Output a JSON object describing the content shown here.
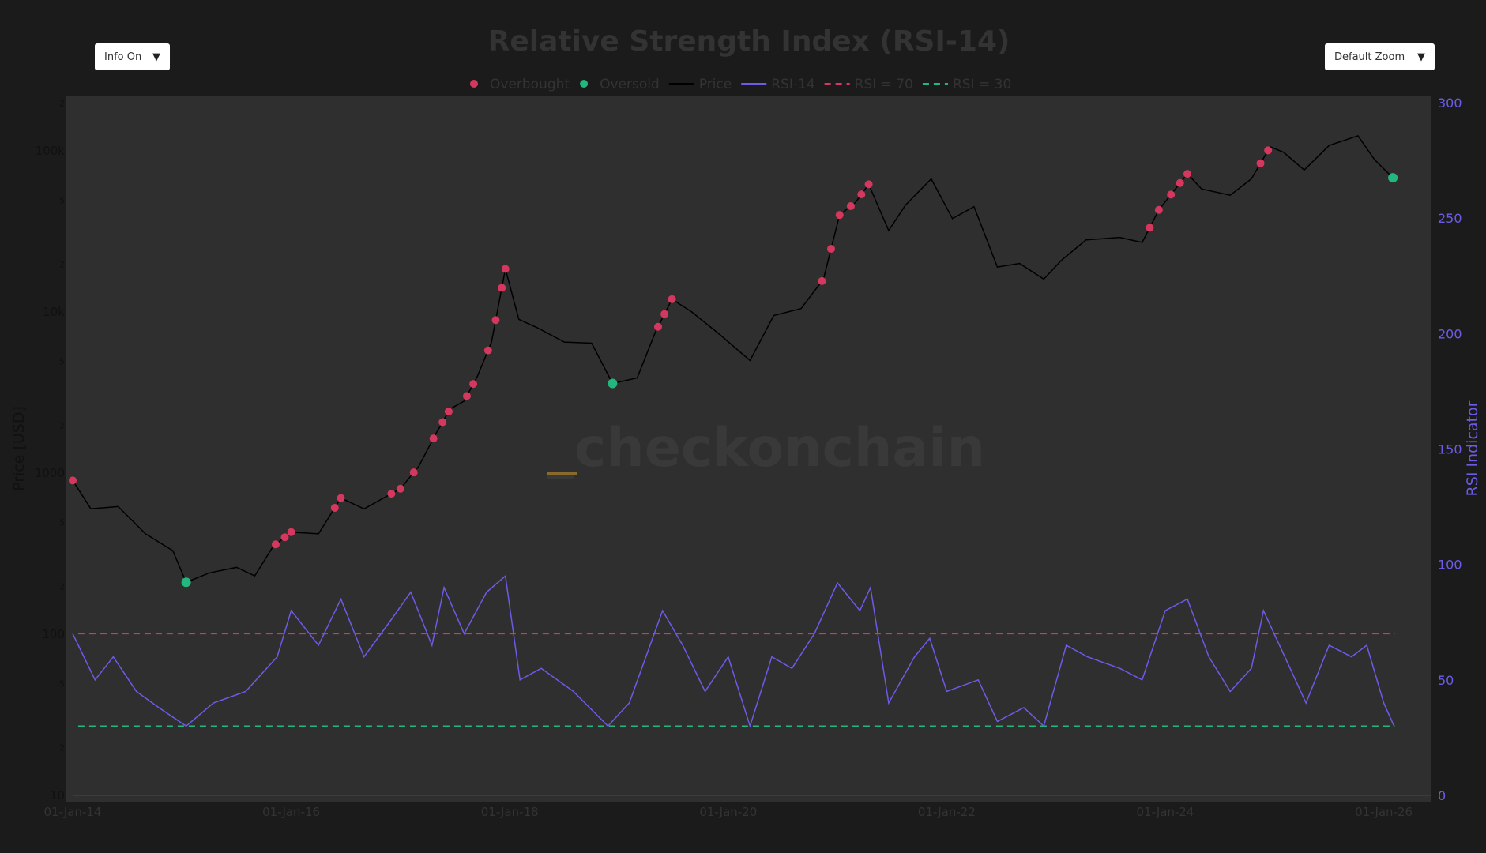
{
  "controls": {
    "info_label": "Info On",
    "zoom_label": "Default Zoom"
  },
  "colors": {
    "overbought": "#d6375e",
    "oversold": "#22b77e",
    "price": "#000000",
    "rsi": "#6b5ce7",
    "rsi70": "#d6375e",
    "rsi30": "#22b77e",
    "plot_bg": "#2f2f2f",
    "page_bg": "#1b1b1b"
  },
  "chart_data": {
    "type": "line",
    "title": "Relative Strength Index (RSI-14)",
    "watermark": "_checkonchain",
    "legend": [
      "Overbought",
      "Oversold",
      "Price",
      "RSI-14",
      "RSI = 70",
      "RSI = 30"
    ],
    "legend_placement": "top-center",
    "y_left": {
      "label": "Price [USD]",
      "scale": "log",
      "range": [
        10,
        250000
      ],
      "ticks": [
        "10",
        "2",
        "5",
        "100",
        "2",
        "5",
        "1000",
        "2",
        "5",
        "10k",
        "2",
        "5",
        "100k",
        "2"
      ]
    },
    "y_right": {
      "label": "RSI Indicator",
      "range": [
        0,
        300
      ],
      "ticks": [
        "0",
        "50",
        "100",
        "150",
        "200",
        "250",
        "300"
      ]
    },
    "x": {
      "ticks": [
        "01-Jan-14",
        "01-Jan-16",
        "01-Jan-18",
        "01-Jan-20",
        "01-Jan-22",
        "01-Jan-24",
        "01-Jan-26"
      ]
    },
    "price": [
      [
        "2014-01-01",
        900
      ],
      [
        "2014-03-01",
        600
      ],
      [
        "2014-06-01",
        620
      ],
      [
        "2014-09-01",
        420
      ],
      [
        "2014-12-01",
        330
      ],
      [
        "2015-01-15",
        210
      ],
      [
        "2015-04-01",
        240
      ],
      [
        "2015-07-01",
        260
      ],
      [
        "2015-09-01",
        230
      ],
      [
        "2015-11-01",
        350
      ],
      [
        "2016-01-01",
        430
      ],
      [
        "2016-04-01",
        420
      ],
      [
        "2016-06-15",
        700
      ],
      [
        "2016-09-01",
        600
      ],
      [
        "2017-01-01",
        800
      ],
      [
        "2017-03-01",
        1100
      ],
      [
        "2017-05-01",
        1800
      ],
      [
        "2017-06-15",
        2500
      ],
      [
        "2017-08-01",
        2800
      ],
      [
        "2017-09-15",
        4000
      ],
      [
        "2017-11-01",
        6500
      ],
      [
        "2017-12-17",
        18500
      ],
      [
        "2018-02-01",
        9000
      ],
      [
        "2018-04-01",
        8000
      ],
      [
        "2018-07-01",
        6500
      ],
      [
        "2018-10-01",
        6400
      ],
      [
        "2018-12-10",
        3600
      ],
      [
        "2019-03-01",
        3900
      ],
      [
        "2019-05-01",
        7500
      ],
      [
        "2019-06-26",
        12000
      ],
      [
        "2019-09-01",
        10000
      ],
      [
        "2019-12-01",
        7300
      ],
      [
        "2020-03-13",
        5000
      ],
      [
        "2020-06-01",
        9500
      ],
      [
        "2020-09-01",
        10500
      ],
      [
        "2020-11-15",
        16000
      ],
      [
        "2021-01-08",
        40000
      ],
      [
        "2021-03-01",
        48000
      ],
      [
        "2021-04-14",
        62000
      ],
      [
        "2021-06-20",
        32000
      ],
      [
        "2021-08-15",
        46000
      ],
      [
        "2021-11-10",
        67000
      ],
      [
        "2022-01-20",
        38000
      ],
      [
        "2022-04-01",
        45000
      ],
      [
        "2022-06-18",
        19000
      ],
      [
        "2022-09-01",
        20000
      ],
      [
        "2022-11-21",
        16000
      ],
      [
        "2023-01-20",
        21000
      ],
      [
        "2023-04-10",
        28000
      ],
      [
        "2023-08-01",
        29000
      ],
      [
        "2023-10-15",
        27000
      ],
      [
        "2023-12-10",
        43000
      ],
      [
        "2024-03-14",
        72000
      ],
      [
        "2024-05-01",
        58000
      ],
      [
        "2024-08-05",
        53000
      ],
      [
        "2024-10-15",
        67000
      ],
      [
        "2024-12-17",
        106000
      ],
      [
        "2025-02-01",
        98000
      ],
      [
        "2025-04-09",
        76000
      ],
      [
        "2025-07-01",
        108000
      ],
      [
        "2025-10-06",
        124000
      ],
      [
        "2025-12-01",
        88000
      ],
      [
        "2026-02-01",
        68000
      ]
    ],
    "rsi": [
      [
        "2014-01-01",
        70
      ],
      [
        "2014-03-15",
        50
      ],
      [
        "2014-05-15",
        60
      ],
      [
        "2014-08-01",
        45
      ],
      [
        "2014-10-15",
        38
      ],
      [
        "2015-01-15",
        30
      ],
      [
        "2015-04-15",
        40
      ],
      [
        "2015-08-01",
        45
      ],
      [
        "2015-11-15",
        60
      ],
      [
        "2016-01-01",
        80
      ],
      [
        "2016-04-01",
        65
      ],
      [
        "2016-06-15",
        85
      ],
      [
        "2016-09-01",
        60
      ],
      [
        "2016-11-25",
        75
      ],
      [
        "2017-02-05",
        88
      ],
      [
        "2017-04-15",
        65
      ],
      [
        "2017-05-25",
        90
      ],
      [
        "2017-08-01",
        70
      ],
      [
        "2017-10-15",
        88
      ],
      [
        "2017-12-17",
        95
      ],
      [
        "2018-02-05",
        50
      ],
      [
        "2018-04-15",
        55
      ],
      [
        "2018-08-01",
        45
      ],
      [
        "2018-11-25",
        30
      ],
      [
        "2019-02-05",
        40
      ],
      [
        "2019-05-25",
        80
      ],
      [
        "2019-08-01",
        65
      ],
      [
        "2019-10-15",
        45
      ],
      [
        "2020-01-01",
        60
      ],
      [
        "2020-03-13",
        30
      ],
      [
        "2020-05-25",
        60
      ],
      [
        "2020-08-01",
        55
      ],
      [
        "2020-10-15",
        70
      ],
      [
        "2021-01-01",
        92
      ],
      [
        "2021-03-15",
        80
      ],
      [
        "2021-04-20",
        90
      ],
      [
        "2021-06-20",
        40
      ],
      [
        "2021-09-15",
        60
      ],
      [
        "2021-11-05",
        68
      ],
      [
        "2022-01-01",
        45
      ],
      [
        "2022-04-15",
        50
      ],
      [
        "2022-06-18",
        32
      ],
      [
        "2022-09-15",
        38
      ],
      [
        "2022-11-21",
        30
      ],
      [
        "2023-02-05",
        65
      ],
      [
        "2023-04-15",
        60
      ],
      [
        "2023-08-01",
        55
      ],
      [
        "2023-10-15",
        50
      ],
      [
        "2024-01-01",
        80
      ],
      [
        "2024-03-14",
        85
      ],
      [
        "2024-05-25",
        60
      ],
      [
        "2024-08-05",
        45
      ],
      [
        "2024-10-15",
        55
      ],
      [
        "2024-11-25",
        80
      ],
      [
        "2025-02-05",
        60
      ],
      [
        "2025-04-15",
        40
      ],
      [
        "2025-07-01",
        65
      ],
      [
        "2025-09-15",
        60
      ],
      [
        "2025-11-05",
        65
      ],
      [
        "2026-01-01",
        40
      ],
      [
        "2026-02-05",
        30
      ]
    ],
    "overbought_dates": [
      "2014-01-01",
      "2015-11-10",
      "2015-12-10",
      "2016-01-01",
      "2016-05-25",
      "2016-06-15",
      "2016-12-01",
      "2017-01-01",
      "2017-02-15",
      "2017-04-20",
      "2017-05-20",
      "2017-06-10",
      "2017-08-10",
      "2017-09-01",
      "2017-10-20",
      "2017-11-15",
      "2017-12-05",
      "2017-12-17",
      "2019-05-10",
      "2019-06-01",
      "2019-06-26",
      "2020-11-10",
      "2020-12-10",
      "2021-01-08",
      "2021-02-15",
      "2021-03-20",
      "2021-04-14",
      "2023-11-10",
      "2023-12-10",
      "2024-01-20",
      "2024-02-20",
      "2024-03-14",
      "2024-11-15",
      "2024-12-10"
    ],
    "oversold_dates": [
      "2015-01-15",
      "2018-12-10",
      "2026-02-01"
    ],
    "hlines": [
      {
        "name": "RSI = 70",
        "value": 70
      },
      {
        "name": "RSI = 30",
        "value": 30
      }
    ]
  }
}
